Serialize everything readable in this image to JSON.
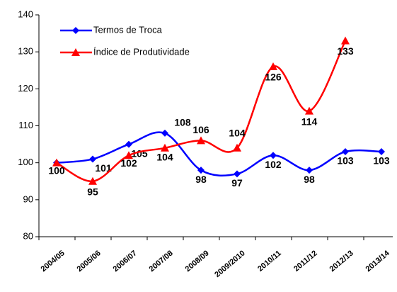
{
  "chart_data": {
    "type": "line",
    "categories": [
      "2004/05",
      "2005/06",
      "2006/07",
      "2007/08",
      "2008/09",
      "2009/2010",
      "2010/11",
      "2011/12",
      "2012/13",
      "2013/14"
    ],
    "series": [
      {
        "name": "Termos de Troca",
        "color": "#0000ff",
        "marker": "diamond",
        "values": [
          100,
          101,
          105,
          108,
          98,
          97,
          102,
          98,
          103,
          103
        ],
        "value_labels": [
          null,
          "101",
          "105",
          "108",
          "98",
          "97",
          "102",
          "98",
          "103",
          "103"
        ]
      },
      {
        "name": "Índice de Produtividade",
        "color": "#ff0000",
        "marker": "triangle",
        "values": [
          100,
          95,
          102,
          104,
          106,
          104,
          126,
          114,
          133,
          null
        ],
        "value_labels": [
          "100",
          "95",
          "102",
          "104",
          "106",
          "104",
          "126",
          "114",
          "133",
          null
        ]
      }
    ],
    "ylim": [
      80,
      140
    ],
    "yticks": [
      80,
      90,
      100,
      110,
      120,
      130,
      140
    ],
    "grid": false,
    "legend": "top-left"
  }
}
